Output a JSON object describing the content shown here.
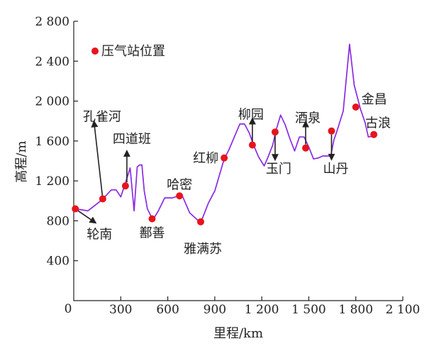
{
  "chart_data": {
    "type": "line",
    "xlabel": "里程/km",
    "ylabel": "高程/m",
    "xlim": [
      0,
      2100
    ],
    "ylim": [
      0,
      2800
    ],
    "x_ticks": [
      {
        "value": 0,
        "label": "0"
      },
      {
        "value": 300,
        "label": "300"
      },
      {
        "value": 600,
        "label": "600"
      },
      {
        "value": 900,
        "label": "900"
      },
      {
        "value": 1200,
        "label": "1 200"
      },
      {
        "value": 1500,
        "label": "1 500"
      },
      {
        "value": 1800,
        "label": "1 800"
      },
      {
        "value": 2100,
        "label": "2 100"
      }
    ],
    "y_ticks": [
      {
        "value": 400,
        "label": "400"
      },
      {
        "value": 800,
        "label": "800"
      },
      {
        "value": 1200,
        "label": "1 200"
      },
      {
        "value": 1600,
        "label": "1 600"
      },
      {
        "value": 2000,
        "label": "2 000"
      },
      {
        "value": 2400,
        "label": "2 400"
      },
      {
        "value": 2800,
        "label": "2 800"
      }
    ],
    "line_color": "#8a2be2",
    "marker_color": "#e8141b",
    "profile": [
      [
        10,
        920
      ],
      [
        90,
        900
      ],
      [
        180,
        1010
      ],
      [
        240,
        1110
      ],
      [
        270,
        1110
      ],
      [
        300,
        1040
      ],
      [
        330,
        1180
      ],
      [
        360,
        1330
      ],
      [
        385,
        900
      ],
      [
        405,
        1340
      ],
      [
        420,
        1360
      ],
      [
        435,
        1360
      ],
      [
        450,
        1100
      ],
      [
        470,
        920
      ],
      [
        505,
        810
      ],
      [
        540,
        900
      ],
      [
        580,
        1030
      ],
      [
        630,
        1030
      ],
      [
        690,
        1060
      ],
      [
        740,
        880
      ],
      [
        810,
        780
      ],
      [
        860,
        980
      ],
      [
        900,
        1100
      ],
      [
        960,
        1420
      ],
      [
        990,
        1510
      ],
      [
        1030,
        1660
      ],
      [
        1060,
        1770
      ],
      [
        1090,
        1770
      ],
      [
        1120,
        1680
      ],
      [
        1150,
        1550
      ],
      [
        1180,
        1440
      ],
      [
        1215,
        1350
      ],
      [
        1240,
        1440
      ],
      [
        1270,
        1560
      ],
      [
        1290,
        1700
      ],
      [
        1320,
        1860
      ],
      [
        1350,
        1760
      ],
      [
        1380,
        1620
      ],
      [
        1410,
        1500
      ],
      [
        1440,
        1640
      ],
      [
        1470,
        1640
      ],
      [
        1500,
        1540
      ],
      [
        1530,
        1420
      ],
      [
        1560,
        1430
      ],
      [
        1590,
        1450
      ],
      [
        1640,
        1450
      ],
      [
        1660,
        1610
      ],
      [
        1680,
        1700
      ],
      [
        1720,
        1900
      ],
      [
        1760,
        2570
      ],
      [
        1790,
        2160
      ],
      [
        1830,
        1920
      ],
      [
        1860,
        1780
      ],
      [
        1880,
        1640
      ],
      [
        1920,
        1650
      ]
    ],
    "stations": [
      {
        "name": "轮南",
        "x": 10,
        "y": 920
      },
      {
        "name": "孔雀河",
        "x": 185,
        "y": 1020
      },
      {
        "name": "四道班",
        "x": 330,
        "y": 1150
      },
      {
        "name": "鄯善",
        "x": 500,
        "y": 820
      },
      {
        "name": "哈密",
        "x": 675,
        "y": 1050
      },
      {
        "name": "雅满苏",
        "x": 810,
        "y": 790
      },
      {
        "name": "红柳",
        "x": 960,
        "y": 1430
      },
      {
        "name": "柳园",
        "x": 1140,
        "y": 1560
      },
      {
        "name": "玉门",
        "x": 1285,
        "y": 1690
      },
      {
        "name": "酒泉",
        "x": 1480,
        "y": 1530
      },
      {
        "name": "山丹",
        "x": 1645,
        "y": 1700
      },
      {
        "name": "金昌",
        "x": 1800,
        "y": 1940
      },
      {
        "name": "古浪",
        "x": 1915,
        "y": 1665
      }
    ],
    "legend": {
      "label": "压气站位置",
      "position": "top-left"
    }
  }
}
